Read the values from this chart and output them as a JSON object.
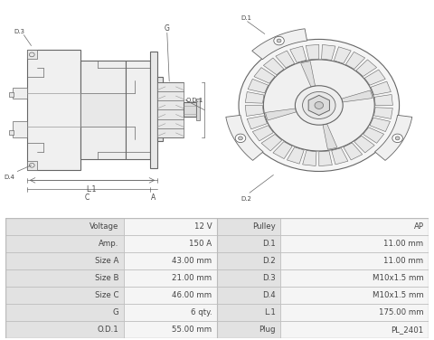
{
  "table_rows": [
    [
      "Voltage",
      "12 V",
      "Pulley",
      "AP"
    ],
    [
      "Amp.",
      "150 A",
      "D.1",
      "11.00 mm"
    ],
    [
      "Size A",
      "43.00 mm",
      "D.2",
      "11.00 mm"
    ],
    [
      "Size B",
      "21.00 mm",
      "D.3",
      "M10x1.5 mm"
    ],
    [
      "Size C",
      "46.00 mm",
      "D.4",
      "M10x1.5 mm"
    ],
    [
      "G",
      "6 qty.",
      "L.1",
      "175.00 mm"
    ],
    [
      "O.D.1",
      "55.00 mm",
      "Plug",
      "PL_2401"
    ]
  ],
  "bg_color": "#ffffff",
  "row_bg_label": "#e2e2e2",
  "row_bg_value": "#f5f5f5",
  "border_color": "#bbbbbb",
  "text_color": "#444444",
  "line_color": "#999999",
  "dark_line": "#666666"
}
